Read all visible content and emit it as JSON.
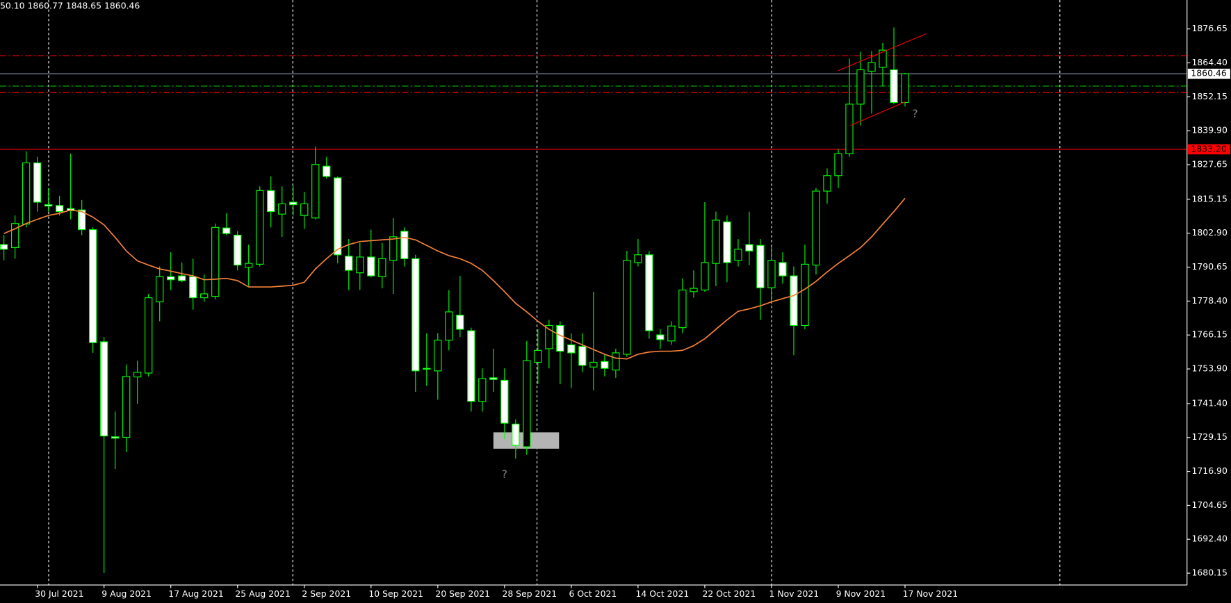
{
  "header": "50.10 1860.77 1848.65 1860.46",
  "chart_data": {
    "type": "candlestick",
    "categories": [
      null,
      null,
      null,
      "30 Jul 2021",
      null,
      null,
      null,
      null,
      null,
      "9 Aug 2021",
      null,
      null,
      null,
      null,
      null,
      "17 Aug 2021",
      null,
      null,
      null,
      null,
      null,
      "25 Aug 2021",
      null,
      null,
      null,
      null,
      null,
      "2 Sep 2021",
      null,
      null,
      null,
      null,
      null,
      "10 Sep 2021",
      null,
      null,
      null,
      null,
      null,
      "20 Sep 2021",
      null,
      null,
      null,
      null,
      null,
      "28 Sep 2021",
      null,
      null,
      null,
      null,
      null,
      "6 Oct 2021",
      null,
      null,
      null,
      null,
      null,
      "14 Oct 2021",
      null,
      null,
      null,
      null,
      null,
      "22 Oct 2021",
      null,
      null,
      null,
      null,
      null,
      "1 Nov 2021",
      null,
      null,
      null,
      null,
      null,
      "9 Nov 2021",
      null,
      null,
      null,
      null,
      null,
      "17 Nov 2021"
    ],
    "open": [
      1798.8,
      1797.7,
      1806.2,
      1828.3,
      1813.2,
      1812.9,
      1811.8,
      1811.3,
      1804.2,
      1763.7,
      1729.4,
      1729.2,
      1751.0,
      1752.4,
      1778.1,
      1787.2,
      1787.5,
      1787.2,
      1779.6,
      1780.1,
      1804.8,
      1802.2,
      1790.6,
      1791.7,
      1818.3,
      1809.8,
      1814.1,
      1809.3,
      1808.4,
      1827.1,
      1822.9,
      1794.6,
      1788.6,
      1794.3,
      1787.2,
      1793.1,
      1803.6,
      1793.7,
      1754.1,
      1753.2,
      1764.3,
      1773.3,
      1767.7,
      1742.2,
      1750.7,
      1749.8,
      1734.0,
      1725.8,
      1756.3,
      1761.2,
      1769.6,
      1762.6,
      1762.0,
      1754.6,
      1756.6,
      1753.5,
      1759.2,
      1792.3,
      1795.1,
      1766.2,
      1764.0,
      1768.8,
      1781.8,
      1782.4,
      1792.0,
      1807.0,
      1793.1,
      1798.8,
      1798.5,
      1783.2,
      1792.3,
      1787.5,
      1769.6,
      1791.4,
      1818.1,
      1823.7,
      1831.6,
      1849.5,
      1861.4,
      1862.8,
      1861.9,
      1850.1
    ],
    "high": [
      1802.2,
      1809.3,
      1832.5,
      1830.5,
      1819.2,
      1816.4,
      1831.6,
      1814.9,
      1805.0,
      1765.4,
      1738.5,
      1755.5,
      1756.9,
      1781.0,
      1790.9,
      1796.0,
      1792.3,
      1793.7,
      1788.0,
      1806.4,
      1810.1,
      1803.6,
      1798.8,
      1819.8,
      1823.4,
      1819.8,
      1820.0,
      1817.8,
      1834.2,
      1830.5,
      1823.4,
      1800.8,
      1799.4,
      1804.2,
      1799.4,
      1808.4,
      1805.0,
      1795.1,
      1766.8,
      1766.8,
      1782.4,
      1787.5,
      1768.8,
      1754.1,
      1761.2,
      1754.1,
      1735.7,
      1764.0,
      1768.2,
      1771.6,
      1771.1,
      1766.8,
      1766.8,
      1781.8,
      1759.2,
      1761.2,
      1796.5,
      1800.8,
      1796.5,
      1768.2,
      1771.1,
      1786.6,
      1789.5,
      1814.1,
      1810.7,
      1809.3,
      1800.8,
      1810.7,
      1800.8,
      1798.0,
      1796.0,
      1790.9,
      1798.8,
      1819.2,
      1826.3,
      1833.3,
      1865.9,
      1868.4,
      1868.7,
      1871.6,
      1877.2,
      1860.77
    ],
    "low": [
      1793.1,
      1793.7,
      1805.0,
      1810.7,
      1810.7,
      1809.3,
      1807.9,
      1802.2,
      1759.7,
      1680.2,
      1717.8,
      1723.8,
      1741.3,
      1751.2,
      1771.1,
      1782.4,
      1785.2,
      1775.3,
      1778.1,
      1779.0,
      1802.2,
      1789.5,
      1783.8,
      1790.9,
      1805.0,
      1801.6,
      1809.3,
      1804.5,
      1807.9,
      1822.6,
      1792.0,
      1782.4,
      1782.4,
      1786.9,
      1783.0,
      1781.0,
      1790.9,
      1745.6,
      1747.8,
      1742.8,
      1760.6,
      1765.4,
      1738.5,
      1738.5,
      1745.6,
      1728.6,
      1721.5,
      1722.9,
      1748.4,
      1754.1,
      1748.4,
      1747.0,
      1752.7,
      1746.2,
      1751.2,
      1750.7,
      1758.3,
      1790.9,
      1764.8,
      1761.2,
      1762.6,
      1766.8,
      1779.6,
      1781.8,
      1783.8,
      1785.2,
      1790.9,
      1791.4,
      1771.6,
      1777.3,
      1784.7,
      1758.9,
      1768.2,
      1788.0,
      1813.5,
      1819.2,
      1830.5,
      1841.8,
      1846.1,
      1856.0,
      1849.5,
      1848.65
    ],
    "close": [
      1797.1,
      1806.4,
      1828.3,
      1814.1,
      1812.7,
      1810.7,
      1811.0,
      1804.2,
      1763.4,
      1729.7,
      1728.9,
      1751.2,
      1752.7,
      1779.6,
      1787.2,
      1786.1,
      1785.8,
      1779.6,
      1781.0,
      1805.0,
      1802.8,
      1791.4,
      1792.0,
      1818.3,
      1810.7,
      1813.5,
      1813.2,
      1813.5,
      1827.7,
      1823.4,
      1795.1,
      1789.5,
      1794.3,
      1787.5,
      1793.7,
      1801.6,
      1793.7,
      1753.2,
      1753.8,
      1764.3,
      1774.5,
      1768.2,
      1742.2,
      1750.4,
      1750.1,
      1734.3,
      1726.3,
      1756.9,
      1760.6,
      1769.6,
      1760.3,
      1759.7,
      1755.2,
      1756.3,
      1754.1,
      1759.7,
      1793.1,
      1795.1,
      1767.7,
      1764.5,
      1769.4,
      1782.4,
      1783.0,
      1792.3,
      1807.6,
      1792.3,
      1797.1,
      1796.5,
      1783.2,
      1793.1,
      1787.5,
      1769.6,
      1791.7,
      1818.1,
      1823.7,
      1831.6,
      1849.5,
      1861.9,
      1864.5,
      1869.0,
      1850.1,
      1860.46
    ],
    "up_color": "#000000",
    "down_color": "#ffffff",
    "wick_color": "#00ff00",
    "ma": {
      "color": "#f4813a",
      "values": [
        1802.8,
        1804.5,
        1806.4,
        1807.9,
        1809.3,
        1810.1,
        1811.3,
        1810.7,
        1808.7,
        1805.9,
        1801.4,
        1796.5,
        1792.9,
        1791.4,
        1790.0,
        1789.2,
        1788.3,
        1787.5,
        1786.1,
        1786.3,
        1786.6,
        1785.8,
        1783.5,
        1783.5,
        1783.5,
        1783.8,
        1784.1,
        1785.2,
        1790.0,
        1793.7,
        1797.1,
        1798.8,
        1799.9,
        1800.2,
        1800.5,
        1800.8,
        1801.4,
        1800.5,
        1798.5,
        1796.5,
        1794.8,
        1793.7,
        1792.0,
        1789.5,
        1785.8,
        1781.8,
        1777.6,
        1774.5,
        1771.1,
        1768.2,
        1766.0,
        1764.3,
        1762.6,
        1760.9,
        1759.2,
        1757.8,
        1757.5,
        1759.2,
        1760.0,
        1760.3,
        1760.3,
        1760.6,
        1762.3,
        1764.8,
        1768.2,
        1771.6,
        1774.7,
        1775.6,
        1776.7,
        1778.1,
        1779.3,
        1780.4,
        1782.7,
        1785.5,
        1788.9,
        1792.0,
        1794.8,
        1797.7,
        1801.6,
        1806.2,
        1810.7,
        1815.5
      ]
    },
    "ylim": [
      1675.9,
      1887.1
    ],
    "yticks": [
      {
        "value": 1876.65,
        "label": "1876.65"
      },
      {
        "value": 1864.4,
        "label": "1864.40"
      },
      {
        "value": 1852.15,
        "label": "1852.15"
      },
      {
        "value": 1839.9,
        "label": "1839.90"
      },
      {
        "value": 1827.65,
        "label": "1827.65"
      },
      {
        "value": 1815.15,
        "label": "1815.15"
      },
      {
        "value": 1802.9,
        "label": "1802.90"
      },
      {
        "value": 1790.65,
        "label": "1790.65"
      },
      {
        "value": 1778.4,
        "label": "1778.40"
      },
      {
        "value": 1766.15,
        "label": "1766.15"
      },
      {
        "value": 1753.9,
        "label": "1753.90"
      },
      {
        "value": 1741.4,
        "label": "1741.40"
      },
      {
        "value": 1729.15,
        "label": "1729.15"
      },
      {
        "value": 1716.9,
        "label": "1716.90"
      },
      {
        "value": 1704.65,
        "label": "1704.65"
      },
      {
        "value": 1692.4,
        "label": "1692.40"
      },
      {
        "value": 1680.15,
        "label": "1680.15"
      }
    ],
    "hlines": [
      {
        "value": 1867.0,
        "color": "#ff0000",
        "style": "dashdot"
      },
      {
        "value": 1853.7,
        "color": "#ff0000",
        "style": "dashdot"
      },
      {
        "value": 1856.0,
        "color": "#00c000",
        "style": "dashdot"
      },
      {
        "value": 1860.46,
        "color": "#8c9bad",
        "style": "solid",
        "tag_fill": "#ffffff"
      },
      {
        "value": 1833.2,
        "label": "1833.20",
        "color": "#ff0000",
        "style": "solid",
        "tag_fill": "#ff0000"
      }
    ],
    "trendlines": [
      {
        "x": [
          75,
          82.9
        ],
        "y": [
          1861.6,
          1874.9
        ],
        "color": "#ff0000"
      },
      {
        "x": [
          76.1,
          81
        ],
        "y": [
          1841.8,
          1850.3
        ],
        "color": "#ff0000"
      }
    ],
    "rectangles": [
      {
        "x": [
          44,
          49.9
        ],
        "y": [
          1725.1,
          1731.0
        ],
        "color": "#b4b4b4"
      }
    ],
    "annotations": [
      {
        "text": "?",
        "x": 45,
        "y": 1715.6,
        "color": "#808080"
      },
      {
        "text": "?",
        "x": 81.9,
        "y": 1845.8,
        "color": "#808080"
      }
    ]
  }
}
